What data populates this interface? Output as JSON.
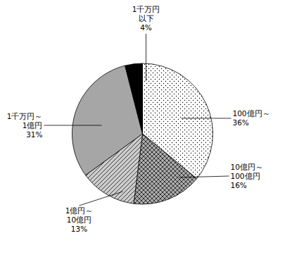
{
  "chart_data": {
    "type": "pie",
    "categories": [
      "100億円～",
      "10億円～\n100億円",
      "1億円～\n10億円",
      "1千万円～\n1億円",
      "1千万円\n以下"
    ],
    "values": [
      36,
      16,
      13,
      31,
      4
    ],
    "value_labels": [
      "36%",
      "16%",
      "13%",
      "31%",
      "4%"
    ],
    "colors": [
      "#ffffff",
      "#aaaaaa",
      "#cccccc",
      "#ffffff",
      "#000000"
    ],
    "data_labels": true
  }
}
